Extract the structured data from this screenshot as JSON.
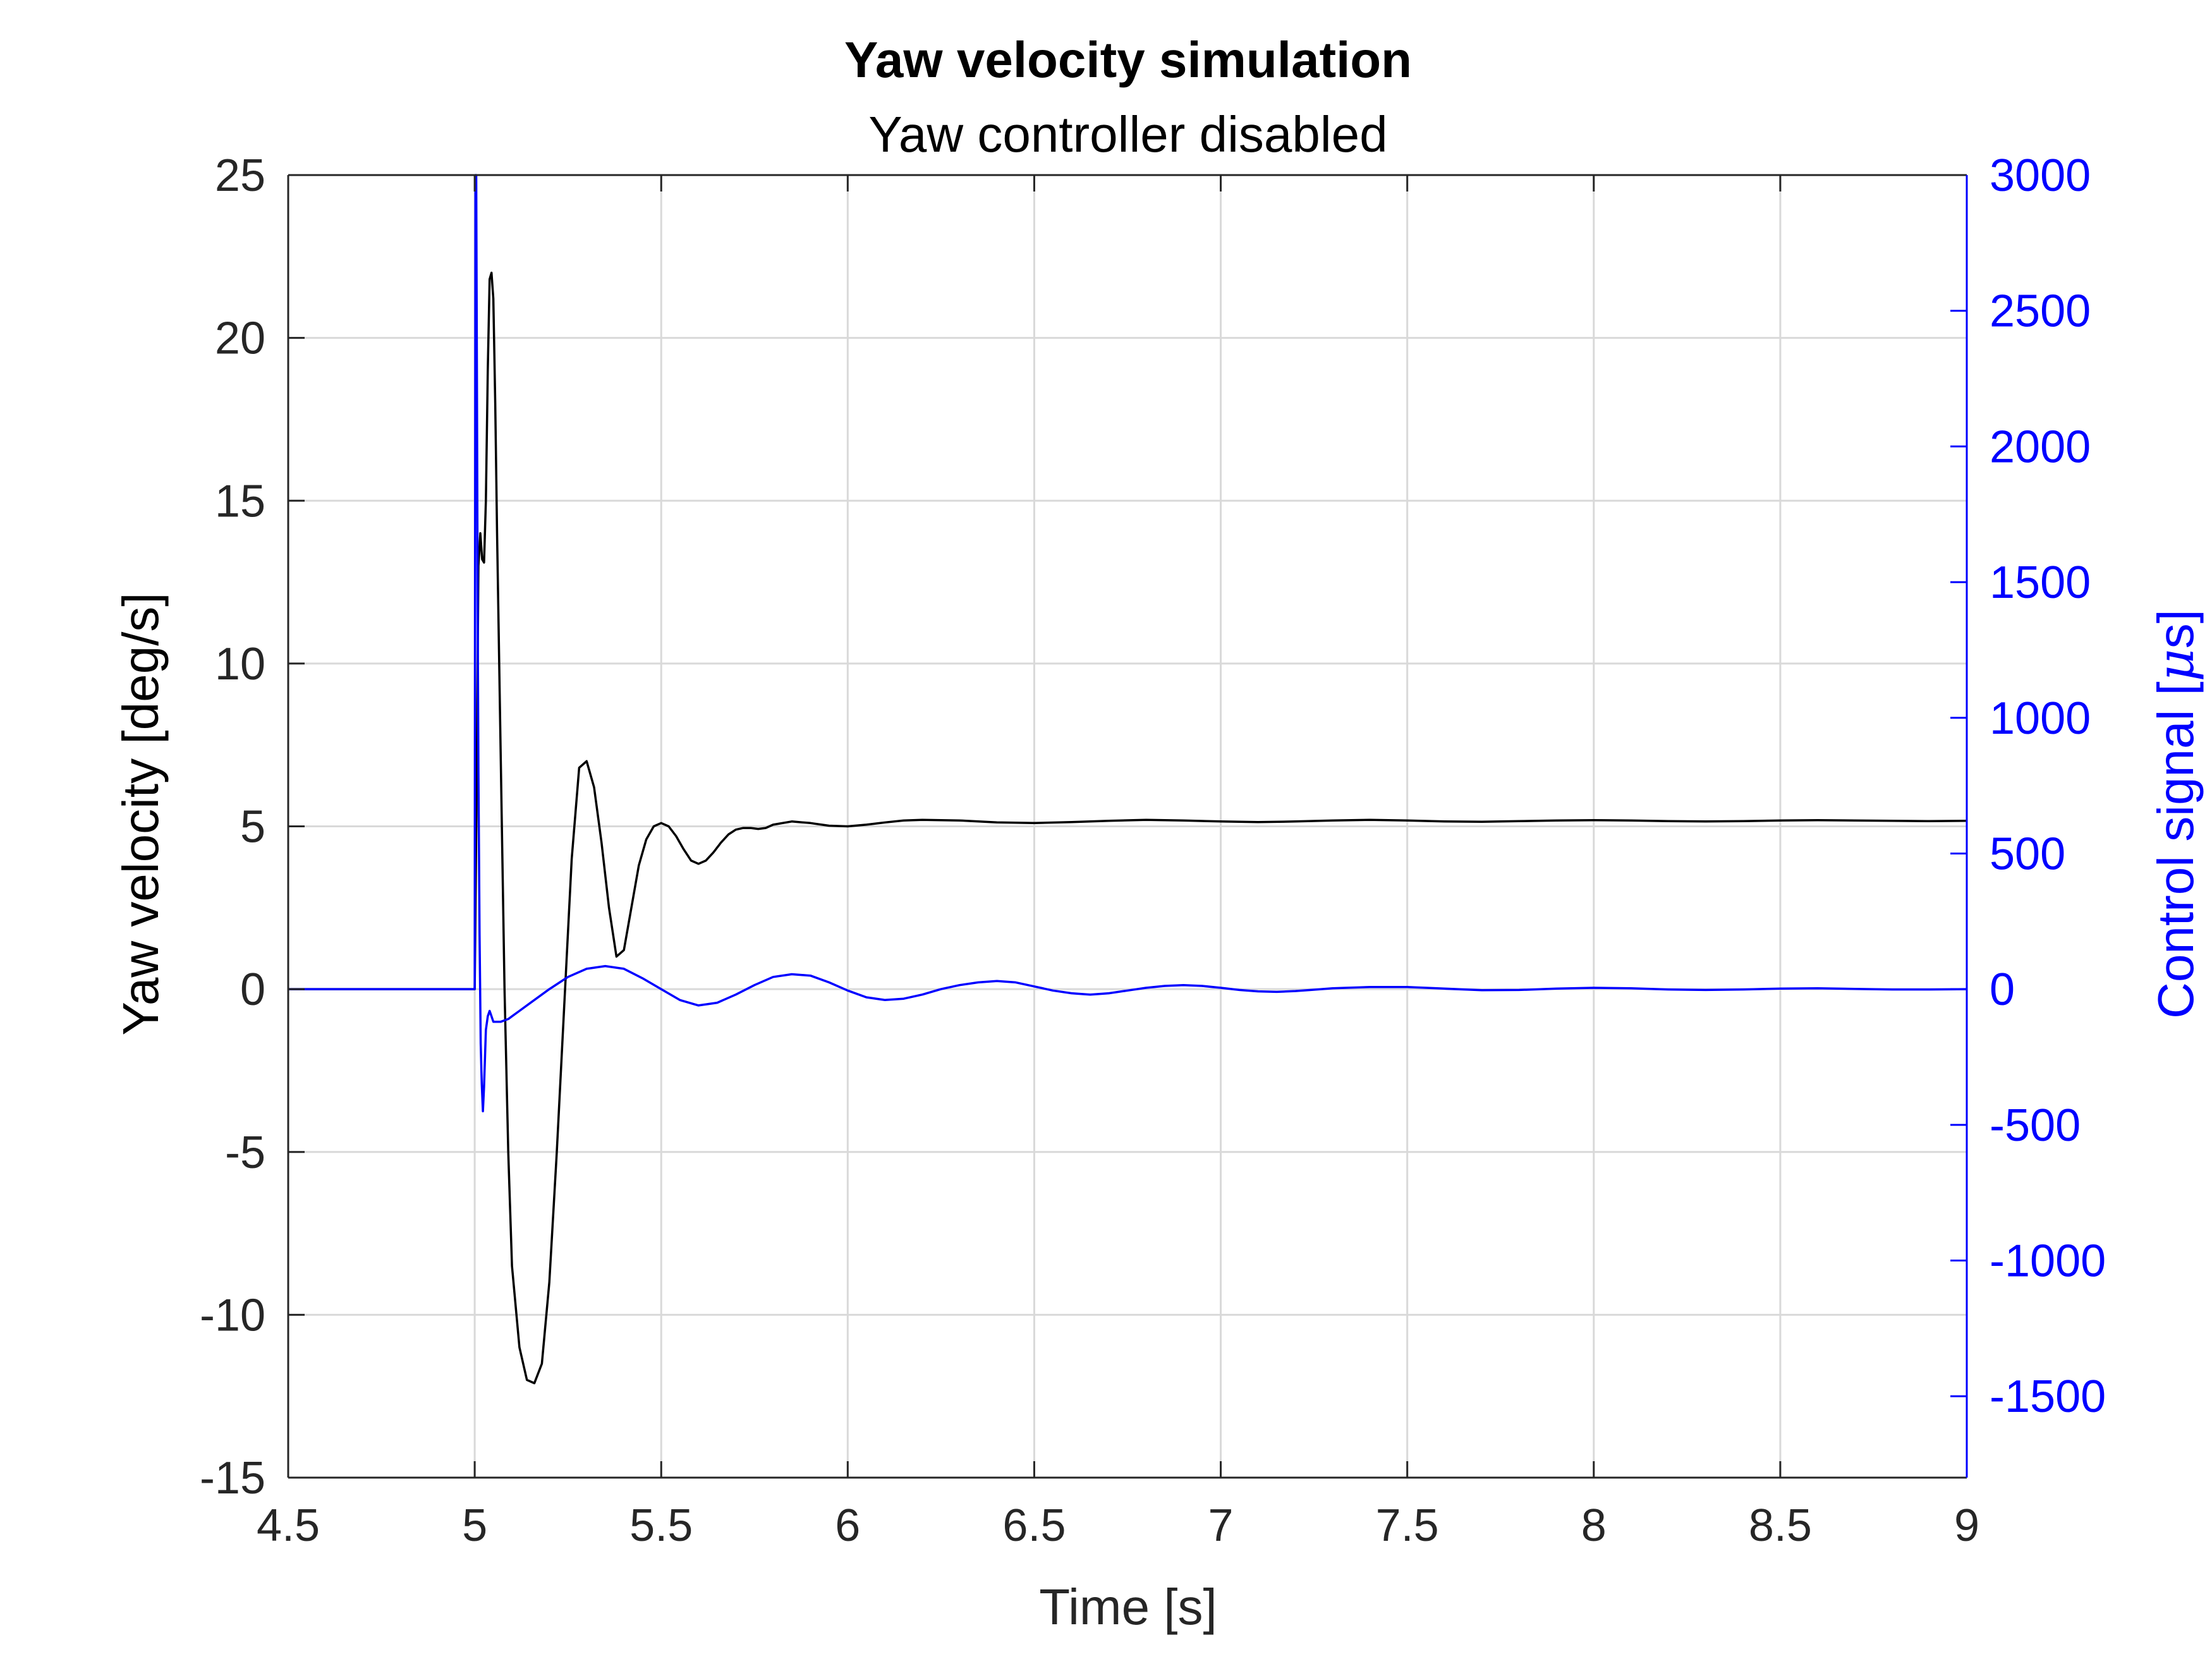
{
  "chart_data": {
    "type": "line",
    "title": "Yaw velocity simulation",
    "subtitle": "Yaw controller disabled",
    "xlabel": "Time [s]",
    "ylabel_left": "Yaw velocity [deg/s]",
    "ylabel_right_prefix": "Control signal [",
    "ylabel_right_mu": "μ",
    "ylabel_right_suffix": "s]",
    "xlim": [
      4.5,
      9
    ],
    "ylim_left": [
      -15,
      25
    ],
    "ylim_right": [
      -1800,
      3000
    ],
    "xticks": [
      "4.5",
      "5",
      "5.5",
      "6",
      "6.5",
      "7",
      "7.5",
      "8",
      "8.5",
      "9"
    ],
    "yticks_left": [
      "-15",
      "-10",
      "-5",
      "0",
      "5",
      "10",
      "15",
      "20",
      "25"
    ],
    "yticks_right": [
      "-1500",
      "-1000",
      "-500",
      "0",
      "500",
      "1000",
      "1500",
      "2000",
      "2500",
      "3000"
    ],
    "grid": true,
    "colors": {
      "left_series": "#000000",
      "right_series": "#0000ff",
      "grid": "#d9d9d9",
      "axis": "#262626"
    },
    "series": [
      {
        "axis": "left",
        "x": [
          4.5,
          4.998,
          5.0,
          5.005,
          5.01,
          5.015,
          5.02,
          5.025,
          5.03,
          5.035,
          5.04,
          5.045,
          5.05,
          5.055,
          5.06,
          5.07,
          5.08,
          5.09,
          5.1,
          5.12,
          5.14,
          5.16,
          5.18,
          5.2,
          5.22,
          5.24,
          5.26,
          5.28,
          5.3,
          5.32,
          5.34,
          5.36,
          5.38,
          5.4,
          5.42,
          5.44,
          5.46,
          5.48,
          5.5,
          5.52,
          5.54,
          5.56,
          5.58,
          5.6,
          5.62,
          5.64,
          5.66,
          5.68,
          5.7,
          5.72,
          5.74,
          5.76,
          5.78,
          5.8,
          5.85,
          5.9,
          5.95,
          6.0,
          6.05,
          6.1,
          6.15,
          6.2,
          6.3,
          6.4,
          6.5,
          6.6,
          6.7,
          6.8,
          6.9,
          7.0,
          7.1,
          7.2,
          7.3,
          7.4,
          7.5,
          7.6,
          7.7,
          7.8,
          7.9,
          8.0,
          8.1,
          8.2,
          8.3,
          8.4,
          8.5,
          8.6,
          8.7,
          8.8,
          8.9,
          9.0
        ],
        "y": [
          0,
          0,
          0,
          6,
          13,
          14,
          13.2,
          13.1,
          15,
          19,
          21.8,
          22,
          21.2,
          18,
          14,
          7,
          0,
          -5,
          -8.5,
          -11,
          -12,
          -12.1,
          -11.5,
          -9,
          -5,
          -0.5,
          4,
          6.8,
          7.0,
          6.2,
          4.5,
          2.5,
          1.0,
          1.2,
          2.5,
          3.8,
          4.6,
          5.0,
          5.1,
          5.0,
          4.7,
          4.3,
          3.95,
          3.85,
          3.95,
          4.2,
          4.5,
          4.75,
          4.9,
          4.95,
          4.95,
          4.92,
          4.95,
          5.05,
          5.15,
          5.1,
          5.02,
          5.0,
          5.05,
          5.12,
          5.18,
          5.2,
          5.18,
          5.12,
          5.1,
          5.13,
          5.17,
          5.2,
          5.18,
          5.15,
          5.13,
          5.15,
          5.18,
          5.2,
          5.18,
          5.15,
          5.14,
          5.16,
          5.18,
          5.19,
          5.18,
          5.16,
          5.15,
          5.16,
          5.18,
          5.19,
          5.18,
          5.17,
          5.16,
          5.17
        ]
      },
      {
        "axis": "right",
        "x": [
          4.5,
          4.998,
          5.0,
          5.002,
          5.004,
          5.006,
          5.008,
          5.01,
          5.013,
          5.016,
          5.019,
          5.022,
          5.025,
          5.03,
          5.035,
          5.04,
          5.045,
          5.05,
          5.055,
          5.06,
          5.07,
          5.08,
          5.09,
          5.1,
          5.12,
          5.15,
          5.2,
          5.25,
          5.3,
          5.35,
          5.4,
          5.45,
          5.5,
          5.55,
          5.6,
          5.65,
          5.7,
          5.75,
          5.8,
          5.85,
          5.9,
          5.95,
          6.0,
          6.05,
          6.1,
          6.15,
          6.2,
          6.25,
          6.3,
          6.35,
          6.4,
          6.45,
          6.5,
          6.55,
          6.6,
          6.65,
          6.7,
          6.75,
          6.8,
          6.85,
          6.9,
          6.95,
          7.0,
          7.05,
          7.1,
          7.15,
          7.2,
          7.25,
          7.3,
          7.4,
          7.5,
          7.6,
          7.7,
          7.8,
          7.9,
          8.0,
          8.1,
          8.2,
          8.3,
          8.4,
          8.5,
          8.6,
          8.7,
          8.8,
          8.9,
          9.0
        ],
        "y": [
          0,
          0,
          0,
          3000,
          3000,
          2200,
          1400,
          800,
          200,
          -200,
          -350,
          -450,
          -360,
          -150,
          -100,
          -80,
          -100,
          -120,
          -120,
          -120,
          -120,
          -115,
          -110,
          -100,
          -80,
          -50,
          0,
          45,
          75,
          85,
          75,
          40,
          0,
          -40,
          -60,
          -50,
          -20,
          15,
          45,
          55,
          50,
          25,
          -5,
          -30,
          -40,
          -35,
          -20,
          0,
          15,
          25,
          30,
          25,
          10,
          -5,
          -15,
          -20,
          -15,
          -5,
          5,
          12,
          15,
          12,
          5,
          -3,
          -8,
          -10,
          -7,
          -2,
          3,
          8,
          8,
          2,
          -4,
          -3,
          2,
          5,
          3,
          -1,
          -3,
          -1,
          2,
          3,
          1,
          -1,
          -1,
          0
        ]
      }
    ]
  }
}
